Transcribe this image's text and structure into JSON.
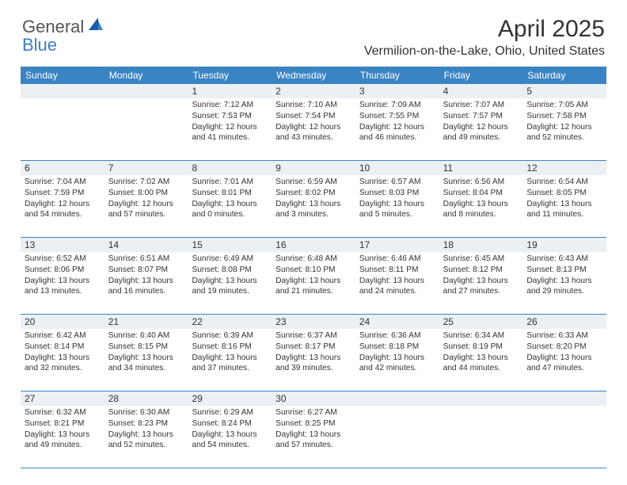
{
  "brand": {
    "part1": "General",
    "part2": "Blue"
  },
  "title": "April 2025",
  "location": "Vermilion-on-the-Lake, Ohio, United States",
  "colors": {
    "header_bg": "#3b84c4",
    "numrow_bg": "#eaf0f4",
    "border": "#3b84c4"
  },
  "day_headers": [
    "Sunday",
    "Monday",
    "Tuesday",
    "Wednesday",
    "Thursday",
    "Friday",
    "Saturday"
  ],
  "weeks": [
    [
      null,
      null,
      {
        "n": "1",
        "sr": "7:12 AM",
        "ss": "7:53 PM",
        "dl": "12 hours and 41 minutes."
      },
      {
        "n": "2",
        "sr": "7:10 AM",
        "ss": "7:54 PM",
        "dl": "12 hours and 43 minutes."
      },
      {
        "n": "3",
        "sr": "7:09 AM",
        "ss": "7:55 PM",
        "dl": "12 hours and 46 minutes."
      },
      {
        "n": "4",
        "sr": "7:07 AM",
        "ss": "7:57 PM",
        "dl": "12 hours and 49 minutes."
      },
      {
        "n": "5",
        "sr": "7:05 AM",
        "ss": "7:58 PM",
        "dl": "12 hours and 52 minutes."
      }
    ],
    [
      {
        "n": "6",
        "sr": "7:04 AM",
        "ss": "7:59 PM",
        "dl": "12 hours and 54 minutes."
      },
      {
        "n": "7",
        "sr": "7:02 AM",
        "ss": "8:00 PM",
        "dl": "12 hours and 57 minutes."
      },
      {
        "n": "8",
        "sr": "7:01 AM",
        "ss": "8:01 PM",
        "dl": "13 hours and 0 minutes."
      },
      {
        "n": "9",
        "sr": "6:59 AM",
        "ss": "8:02 PM",
        "dl": "13 hours and 3 minutes."
      },
      {
        "n": "10",
        "sr": "6:57 AM",
        "ss": "8:03 PM",
        "dl": "13 hours and 5 minutes."
      },
      {
        "n": "11",
        "sr": "6:56 AM",
        "ss": "8:04 PM",
        "dl": "13 hours and 8 minutes."
      },
      {
        "n": "12",
        "sr": "6:54 AM",
        "ss": "8:05 PM",
        "dl": "13 hours and 11 minutes."
      }
    ],
    [
      {
        "n": "13",
        "sr": "6:52 AM",
        "ss": "8:06 PM",
        "dl": "13 hours and 13 minutes."
      },
      {
        "n": "14",
        "sr": "6:51 AM",
        "ss": "8:07 PM",
        "dl": "13 hours and 16 minutes."
      },
      {
        "n": "15",
        "sr": "6:49 AM",
        "ss": "8:08 PM",
        "dl": "13 hours and 19 minutes."
      },
      {
        "n": "16",
        "sr": "6:48 AM",
        "ss": "8:10 PM",
        "dl": "13 hours and 21 minutes."
      },
      {
        "n": "17",
        "sr": "6:46 AM",
        "ss": "8:11 PM",
        "dl": "13 hours and 24 minutes."
      },
      {
        "n": "18",
        "sr": "6:45 AM",
        "ss": "8:12 PM",
        "dl": "13 hours and 27 minutes."
      },
      {
        "n": "19",
        "sr": "6:43 AM",
        "ss": "8:13 PM",
        "dl": "13 hours and 29 minutes."
      }
    ],
    [
      {
        "n": "20",
        "sr": "6:42 AM",
        "ss": "8:14 PM",
        "dl": "13 hours and 32 minutes."
      },
      {
        "n": "21",
        "sr": "6:40 AM",
        "ss": "8:15 PM",
        "dl": "13 hours and 34 minutes."
      },
      {
        "n": "22",
        "sr": "6:39 AM",
        "ss": "8:16 PM",
        "dl": "13 hours and 37 minutes."
      },
      {
        "n": "23",
        "sr": "6:37 AM",
        "ss": "8:17 PM",
        "dl": "13 hours and 39 minutes."
      },
      {
        "n": "24",
        "sr": "6:36 AM",
        "ss": "8:18 PM",
        "dl": "13 hours and 42 minutes."
      },
      {
        "n": "25",
        "sr": "6:34 AM",
        "ss": "8:19 PM",
        "dl": "13 hours and 44 minutes."
      },
      {
        "n": "26",
        "sr": "6:33 AM",
        "ss": "8:20 PM",
        "dl": "13 hours and 47 minutes."
      }
    ],
    [
      {
        "n": "27",
        "sr": "6:32 AM",
        "ss": "8:21 PM",
        "dl": "13 hours and 49 minutes."
      },
      {
        "n": "28",
        "sr": "6:30 AM",
        "ss": "8:23 PM",
        "dl": "13 hours and 52 minutes."
      },
      {
        "n": "29",
        "sr": "6:29 AM",
        "ss": "8:24 PM",
        "dl": "13 hours and 54 minutes."
      },
      {
        "n": "30",
        "sr": "6:27 AM",
        "ss": "8:25 PM",
        "dl": "13 hours and 57 minutes."
      },
      null,
      null,
      null
    ]
  ],
  "labels": {
    "sunrise": "Sunrise: ",
    "sunset": "Sunset: ",
    "daylight": "Daylight: "
  }
}
